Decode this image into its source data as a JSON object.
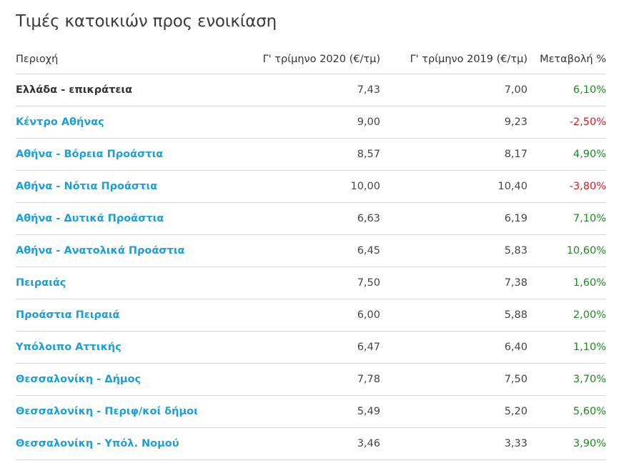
{
  "title": "Τιμές κατοικιών προς ενοικίαση",
  "colors": {
    "link": "#1a9fdb",
    "positive": "#1a8a1a",
    "negative": "#e8141c",
    "divider": "#d6d6d6",
    "text": "#333333"
  },
  "table": {
    "headers": {
      "region": "Περιοχή",
      "q2020": "Γ' τρίμηνο 2020 (€/τμ)",
      "q2019": "Γ' τρίμηνο 2019 (€/τμ)",
      "change": "Μεταβολή %"
    },
    "rows": [
      {
        "region": "Ελλάδα - επικράτεια",
        "q2020": "7,43",
        "q2019": "7,00",
        "change": "6,10%",
        "is_link": false,
        "trend": "positive"
      },
      {
        "region": "Κέντρο Αθήνας",
        "q2020": "9,00",
        "q2019": "9,23",
        "change": "-2,50%",
        "is_link": true,
        "trend": "negative"
      },
      {
        "region": "Αθήνα - Βόρεια Προάστια",
        "q2020": "8,57",
        "q2019": "8,17",
        "change": "4,90%",
        "is_link": true,
        "trend": "positive"
      },
      {
        "region": "Αθήνα - Νότια Προάστια",
        "q2020": "10,00",
        "q2019": "10,40",
        "change": "-3,80%",
        "is_link": true,
        "trend": "negative"
      },
      {
        "region": "Αθήνα - Δυτικά Προάστια",
        "q2020": "6,63",
        "q2019": "6,19",
        "change": "7,10%",
        "is_link": true,
        "trend": "positive"
      },
      {
        "region": "Αθήνα - Ανατολικά Προάστια",
        "q2020": "6,45",
        "q2019": "5,83",
        "change": "10,60%",
        "is_link": true,
        "trend": "positive"
      },
      {
        "region": "Πειραιάς",
        "q2020": "7,50",
        "q2019": "7,38",
        "change": "1,60%",
        "is_link": true,
        "trend": "positive"
      },
      {
        "region": "Προάστια Πειραιά",
        "q2020": "6,00",
        "q2019": "5,88",
        "change": "2,00%",
        "is_link": true,
        "trend": "positive"
      },
      {
        "region": "Υπόλοιπο Αττικής",
        "q2020": "6,47",
        "q2019": "6,40",
        "change": "1,10%",
        "is_link": true,
        "trend": "positive"
      },
      {
        "region": "Θεσσαλονίκη - Δήμος",
        "q2020": "7,78",
        "q2019": "7,50",
        "change": "3,70%",
        "is_link": true,
        "trend": "positive"
      },
      {
        "region": "Θεσσαλονίκη - Περιφ/κοί δήμοι",
        "q2020": "5,49",
        "q2019": "5,20",
        "change": "5,60%",
        "is_link": true,
        "trend": "positive"
      },
      {
        "region": "Θεσσαλονίκη - Υπόλ. Νομού",
        "q2020": "3,46",
        "q2019": "3,33",
        "change": "3,90%",
        "is_link": true,
        "trend": "positive"
      }
    ]
  }
}
